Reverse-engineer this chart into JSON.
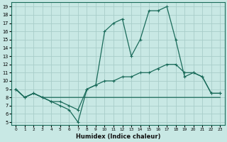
{
  "xlabel": "Humidex (Indice chaleur)",
  "bg_color": "#c8e8e4",
  "grid_color": "#a8cdc9",
  "line_color": "#1a6b5a",
  "xlim_min": -0.5,
  "xlim_max": 23.5,
  "ylim_min": 4.7,
  "ylim_max": 19.5,
  "xticks": [
    0,
    1,
    2,
    3,
    4,
    5,
    6,
    7,
    8,
    9,
    10,
    11,
    12,
    13,
    14,
    15,
    16,
    17,
    18,
    19,
    20,
    21,
    22,
    23
  ],
  "yticks": [
    5,
    6,
    7,
    8,
    9,
    10,
    11,
    12,
    13,
    14,
    15,
    16,
    17,
    18,
    19
  ],
  "line1_x": [
    0,
    1,
    2,
    3,
    4,
    5,
    6,
    7,
    8,
    9,
    10,
    11,
    12,
    13,
    14,
    15,
    16,
    17,
    18,
    19,
    20,
    21,
    22,
    23
  ],
  "line1_y": [
    9,
    8,
    8.5,
    8,
    8,
    8,
    8,
    8,
    8,
    8,
    8,
    8,
    8,
    8,
    8,
    8,
    8,
    8,
    8,
    8,
    8,
    8,
    8,
    8
  ],
  "line2_x": [
    0,
    1,
    2,
    3,
    4,
    5,
    6,
    7,
    8,
    9,
    10,
    11,
    12,
    13,
    14,
    15,
    16,
    17,
    18,
    19,
    20,
    21,
    22,
    23
  ],
  "line2_y": [
    9,
    8,
    8.5,
    8,
    7.5,
    7.5,
    7,
    6.5,
    9,
    9.5,
    10,
    10,
    10.5,
    10.5,
    11,
    11,
    11.5,
    12,
    12,
    11,
    11,
    10.5,
    8.5,
    8.5
  ],
  "line3_x": [
    0,
    1,
    2,
    3,
    4,
    5,
    6,
    7,
    8,
    9,
    10,
    11,
    12,
    13,
    14,
    15,
    16,
    17,
    18,
    19,
    20,
    21,
    22,
    23
  ],
  "line3_y": [
    9,
    8,
    8.5,
    8,
    7.5,
    7,
    6.5,
    5,
    9,
    9.5,
    16,
    17,
    17.5,
    13,
    15,
    18.5,
    18.5,
    19,
    15,
    10.5,
    11,
    10.5,
    8.5,
    8.5
  ]
}
